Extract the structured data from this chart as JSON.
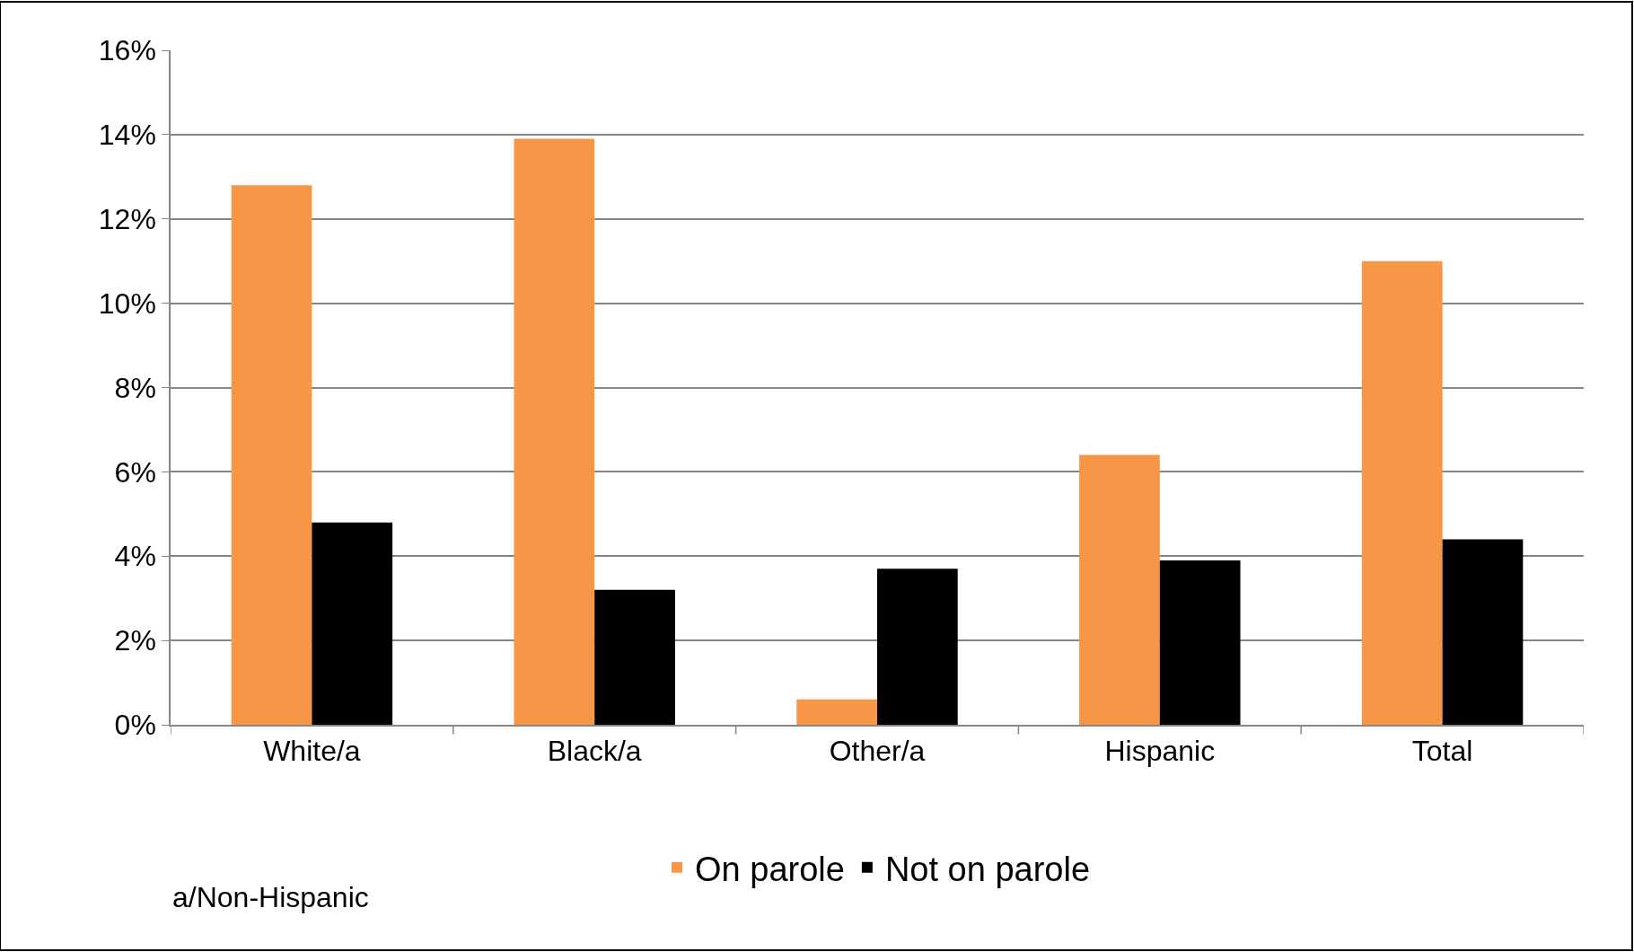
{
  "chart_data": {
    "type": "bar",
    "categories": [
      "White/a",
      "Black/a",
      "Other/a",
      "Hispanic",
      "Total"
    ],
    "series": [
      {
        "name": "On parole",
        "color": "#f79646",
        "values": [
          12.8,
          13.9,
          0.6,
          6.4,
          11.0
        ]
      },
      {
        "name": "Not on parole",
        "color": "#000000",
        "values": [
          4.8,
          3.2,
          3.7,
          3.9,
          4.4
        ]
      }
    ],
    "ylim": [
      0,
      16
    ],
    "yticks": [
      {
        "value": 0,
        "label": "0%"
      },
      {
        "value": 2,
        "label": "2%"
      },
      {
        "value": 4,
        "label": "4%"
      },
      {
        "value": 6,
        "label": "6%"
      },
      {
        "value": 8,
        "label": "8%"
      },
      {
        "value": 10,
        "label": "10%"
      },
      {
        "value": 12,
        "label": "12%"
      },
      {
        "value": 14,
        "label": "14%"
      },
      {
        "value": 16,
        "label": "16%"
      }
    ],
    "grid": "y",
    "legend": "bottom",
    "annotations": [
      "a/Non-Hispanic"
    ]
  }
}
